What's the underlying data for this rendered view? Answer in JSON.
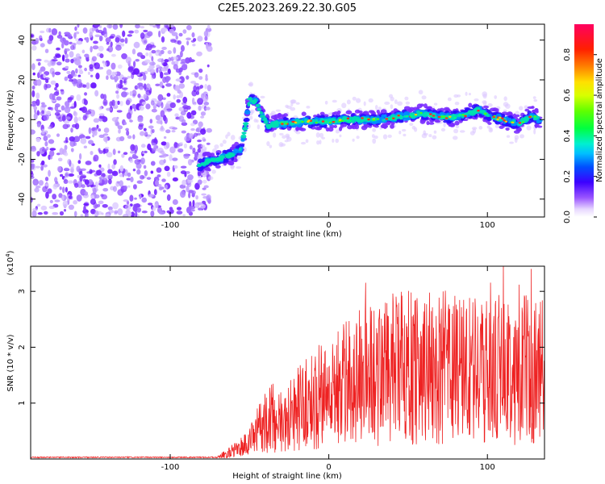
{
  "title": "C2E5.2023.269.22.30.G05",
  "chart_data": [
    {
      "type": "heatmap",
      "xlabel": "Height of straight line (km)",
      "ylabel": "Frequency (Hz)",
      "xlim": [
        -188,
        136
      ],
      "ylim": [
        -49,
        48
      ],
      "xticks": [
        -100,
        0,
        100
      ],
      "yticks": [
        -40,
        -20,
        0,
        20,
        40
      ],
      "colorbar": {
        "label": "Normalized spectral amplitude",
        "range": [
          0.0,
          0.95
        ],
        "ticks": [
          0.0,
          0.2,
          0.4,
          0.6,
          0.8
        ],
        "colormap": "rainbow"
      },
      "noise_region_x": [
        -188,
        -75
      ],
      "ridge": {
        "x": [
          -82,
          -72,
          -62,
          -55,
          -50,
          -46,
          -42,
          -38,
          -33,
          -25,
          -15,
          0,
          10,
          20,
          30,
          40,
          50,
          58,
          65,
          75,
          85,
          95,
          100,
          110,
          120,
          128,
          133
        ],
        "y": [
          -23,
          -20,
          -18,
          -15,
          10,
          9,
          2,
          -3,
          -2,
          -2,
          -1,
          -1,
          0,
          0,
          0,
          1,
          2,
          3,
          2,
          1,
          2,
          5,
          2,
          0,
          -2,
          2,
          0
        ]
      }
    },
    {
      "type": "line",
      "xlabel": "Height of straight line (km)",
      "ylabel": "SNR (10 * v/v)",
      "yscale_label": "(x10",
      "yscale_exp": "4",
      "yscale_close": ")",
      "xlim": [
        -188,
        136
      ],
      "ylim": [
        0,
        3.45
      ],
      "xticks": [
        -100,
        0,
        100
      ],
      "yticks": [
        1,
        2,
        3
      ],
      "color": "#ee2222",
      "envelope": {
        "x": [
          -188,
          -70,
          -60,
          -50,
          -40,
          -35,
          -30,
          -20,
          -10,
          0,
          10,
          20,
          30,
          40,
          50,
          60,
          70,
          80,
          90,
          100,
          110,
          120,
          130,
          136
        ],
        "y": [
          0.02,
          0.03,
          0.15,
          0.3,
          0.7,
          0.75,
          0.6,
          0.9,
          1.05,
          1.2,
          1.35,
          1.5,
          1.55,
          1.6,
          1.65,
          1.65,
          1.62,
          1.65,
          1.6,
          1.55,
          1.6,
          1.6,
          1.6,
          1.6
        ]
      }
    }
  ]
}
